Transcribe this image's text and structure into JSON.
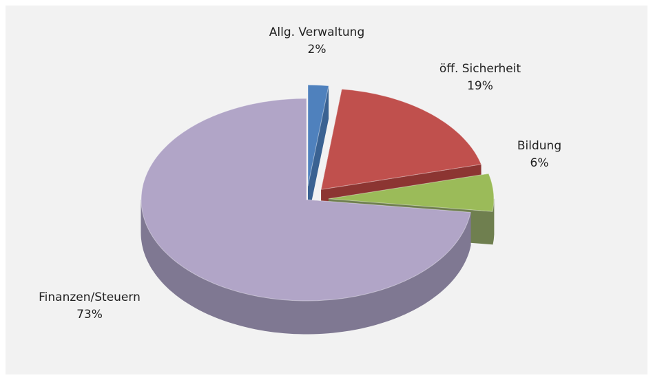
{
  "chart_data": {
    "type": "pie",
    "categories": [
      "Allg. Verwaltung",
      "öff. Sicherheit",
      "Bildung",
      "Finanzen/Steuern"
    ],
    "values": [
      2,
      19,
      6,
      73
    ],
    "value_labels": [
      "2%",
      "19%",
      "6%",
      "73%"
    ],
    "colors": [
      "#4f81bd",
      "#c0504d",
      "#9bbb59",
      "#b1a5c7"
    ],
    "side_colors": [
      "#3a6292",
      "#8c3532",
      "#6f7f4f",
      "#7f7892"
    ]
  }
}
